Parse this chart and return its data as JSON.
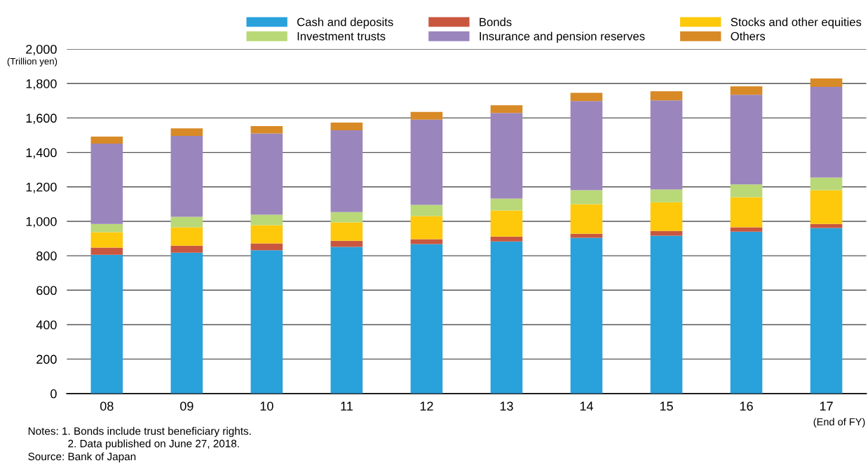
{
  "chart_data": {
    "type": "bar",
    "stacked": true,
    "ylabel": "(Trillion yen)",
    "categories": [
      "08",
      "09",
      "10",
      "11",
      "12",
      "13",
      "14",
      "15",
      "16",
      "17"
    ],
    "series": [
      {
        "name": "Cash and deposits",
        "color": "#29a1db",
        "values": [
          806,
          818,
          832,
          851,
          868,
          883,
          904,
          916,
          940,
          961
        ]
      },
      {
        "name": "Bonds",
        "color": "#c9573f",
        "values": [
          41,
          41,
          40,
          36,
          28,
          28,
          24,
          28,
          25,
          24
        ]
      },
      {
        "name": "Stocks and other equities",
        "color": "#fec80b",
        "values": [
          90,
          106,
          105,
          107,
          134,
          152,
          171,
          167,
          175,
          196
        ]
      },
      {
        "name": "Investment trusts",
        "color": "#b9d877",
        "values": [
          48,
          61,
          61,
          60,
          65,
          69,
          82,
          74,
          74,
          73
        ]
      },
      {
        "name": "Insurance and pension reserves",
        "color": "#9b85bd",
        "values": [
          466,
          470,
          472,
          475,
          496,
          497,
          517,
          517,
          521,
          527
        ]
      },
      {
        "name": "Others",
        "color": "#d88a26",
        "values": [
          41,
          44,
          43,
          44,
          44,
          45,
          48,
          53,
          49,
          48
        ]
      }
    ],
    "ylim": [
      0,
      2000
    ],
    "yticks": [
      0,
      200,
      400,
      600,
      800,
      {
        "value": 1000,
        "label": "1,000"
      },
      {
        "value": 1200,
        "label": "1,200"
      },
      {
        "value": 1400,
        "label": "1,400"
      },
      {
        "value": 1600,
        "label": "1,600"
      },
      {
        "value": 1800,
        "label": "1,800"
      },
      {
        "value": 2000,
        "label": "2,000"
      }
    ],
    "grid": "y",
    "legend": "top right",
    "annotations": [
      "(End of FY)",
      "Notes: 1. Bonds include trust beneficiary rights.",
      "2. Data published on June 27, 2018.",
      "Source: Bank of Japan"
    ]
  }
}
